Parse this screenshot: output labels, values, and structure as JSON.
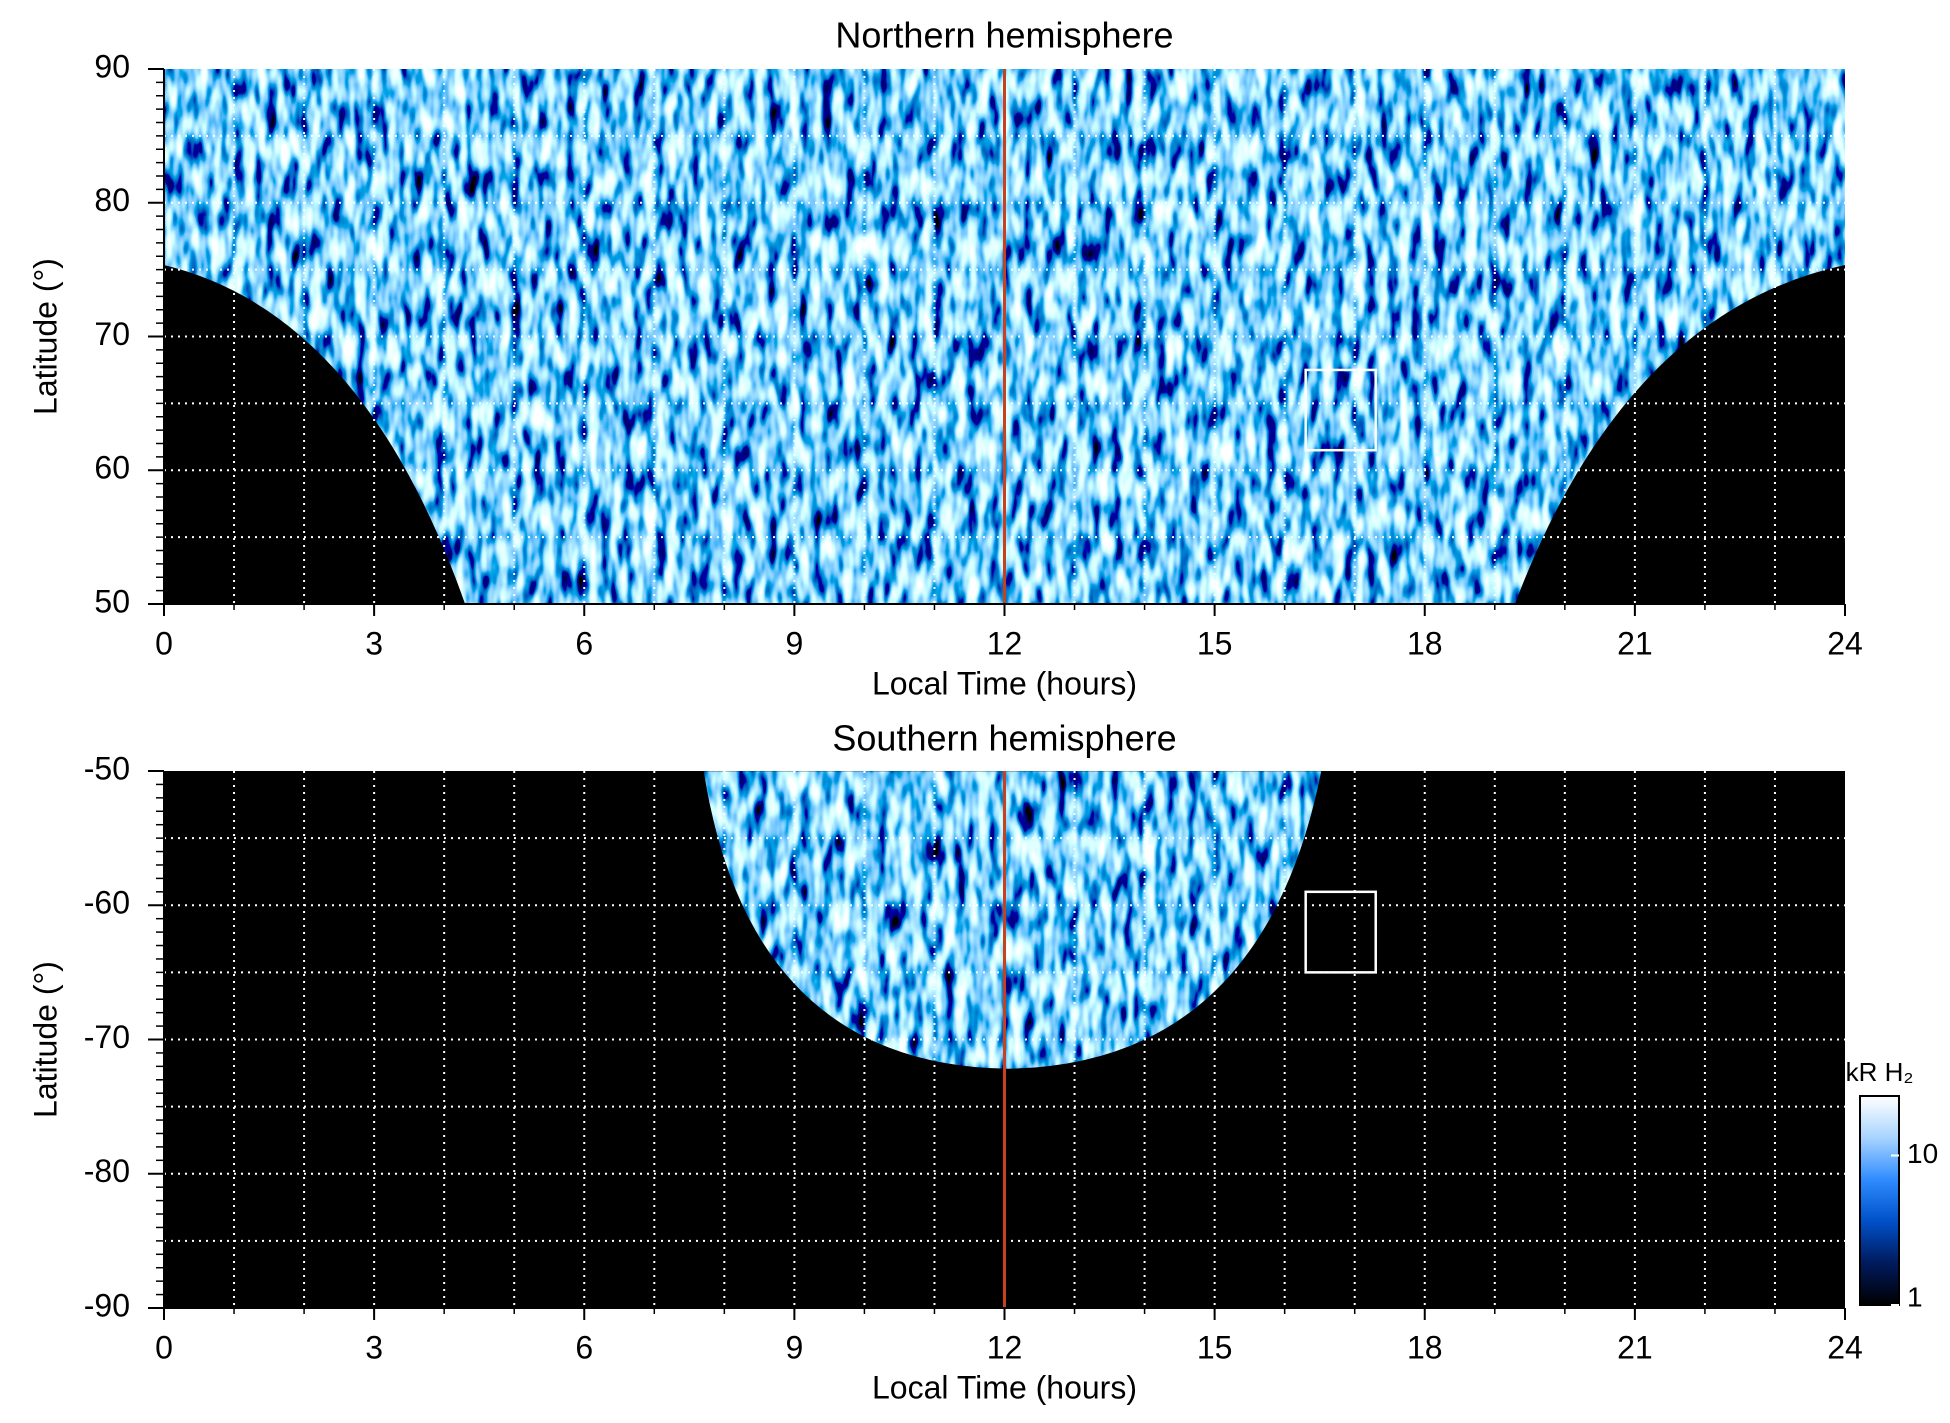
{
  "chart_data": [
    {
      "type": "heatmap",
      "title": "Northern hemisphere",
      "xlabel": "Local Time (hours)",
      "ylabel": "Latitude (°)",
      "xlim": [
        0,
        24
      ],
      "xticks": [
        0,
        3,
        6,
        9,
        12,
        15,
        18,
        21,
        24
      ],
      "ylim": [
        50,
        90
      ],
      "yticks": [
        50,
        60,
        70,
        80,
        90
      ],
      "grid": true,
      "grid_step": {
        "x": 1,
        "y": 5
      },
      "vline": 12,
      "vline_color": "#c8401e",
      "box": {
        "x": [
          16.3,
          17.3
        ],
        "y": [
          61.5,
          67.5
        ]
      }
    },
    {
      "type": "heatmap",
      "title": "Southern hemisphere",
      "xlabel": "Local Time (hours)",
      "ylabel": "Latitude (°)",
      "xlim": [
        0,
        24
      ],
      "xticks": [
        0,
        3,
        6,
        9,
        12,
        15,
        18,
        21,
        24
      ],
      "ylim": [
        -90,
        -50
      ],
      "yticks": [
        -90,
        -80,
        -70,
        -60,
        -50
      ],
      "grid": true,
      "grid_step": {
        "x": 1,
        "y": 5
      },
      "vline": 12,
      "vline_color": "#c8401e",
      "box": {
        "x": [
          16.3,
          17.3
        ],
        "y": [
          -65,
          -59
        ]
      },
      "colorbar": {
        "label": "kR H₂",
        "scale": "log",
        "lim": [
          1,
          25
        ],
        "ticks": [
          1,
          10
        ],
        "colors": [
          "#000000",
          "#001a5c",
          "#0050c8",
          "#2f8cff",
          "#a8d4ff",
          "#ffffff"
        ]
      }
    }
  ]
}
